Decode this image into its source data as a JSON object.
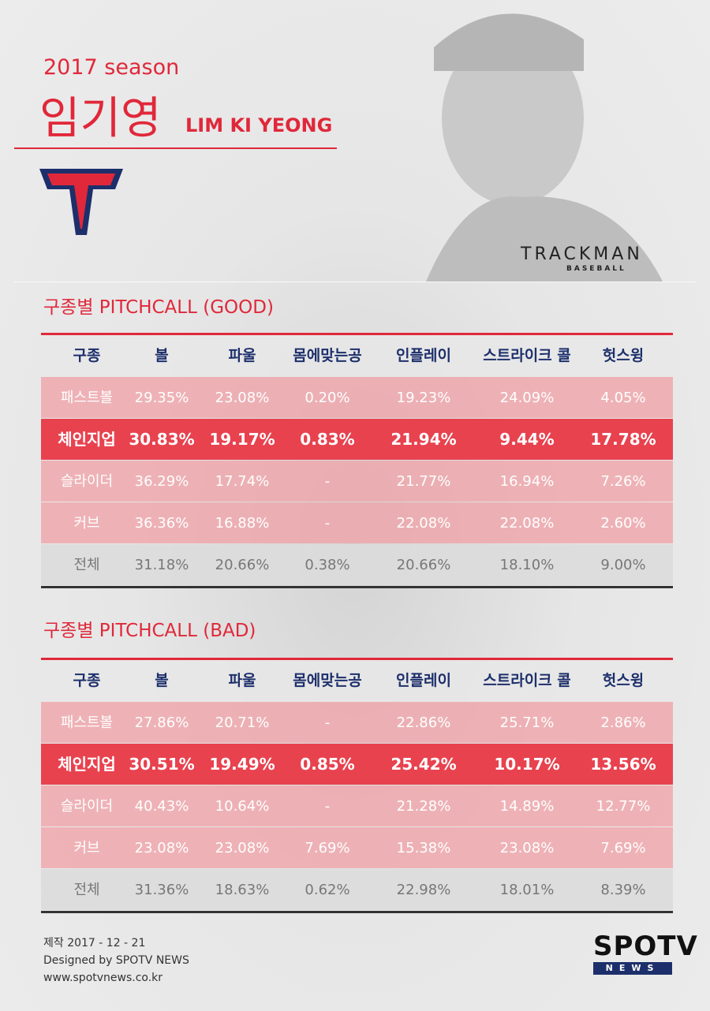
{
  "header": {
    "season": "2017 season",
    "name_ko": "임기영",
    "name_en": "LIM KI YEONG",
    "brand": "TRACKMAN",
    "brand_sub": "BASEBALL"
  },
  "tables": [
    {
      "title": "구종별 PITCHCALL (GOOD)",
      "columns": [
        "구종",
        "볼",
        "파울",
        "몸에맞는공",
        "인플레이",
        "스트라이크 콜",
        "헛스윙"
      ],
      "rows": [
        [
          "패스트볼",
          "29.35%",
          "23.08%",
          "0.20%",
          "19.23%",
          "24.09%",
          "4.05%"
        ],
        [
          "체인지업",
          "30.83%",
          "19.17%",
          "0.83%",
          "21.94%",
          "9.44%",
          "17.78%"
        ],
        [
          "슬라이더",
          "36.29%",
          "17.74%",
          "-",
          "21.77%",
          "16.94%",
          "7.26%"
        ],
        [
          "커브",
          "36.36%",
          "16.88%",
          "-",
          "22.08%",
          "22.08%",
          "2.60%"
        ],
        [
          "전체",
          "31.18%",
          "20.66%",
          "0.38%",
          "20.66%",
          "18.10%",
          "9.00%"
        ]
      ]
    },
    {
      "title": "구종별 PITCHCALL (BAD)",
      "columns": [
        "구종",
        "볼",
        "파울",
        "몸에맞는공",
        "인플레이",
        "스트라이크 콜",
        "헛스윙"
      ],
      "rows": [
        [
          "패스트볼",
          "27.86%",
          "20.71%",
          "-",
          "22.86%",
          "25.71%",
          "2.86%"
        ],
        [
          "체인지업",
          "30.51%",
          "19.49%",
          "0.85%",
          "25.42%",
          "10.17%",
          "13.56%"
        ],
        [
          "슬라이더",
          "40.43%",
          "10.64%",
          "-",
          "21.28%",
          "14.89%",
          "12.77%"
        ],
        [
          "커브",
          "23.08%",
          "23.08%",
          "7.69%",
          "15.38%",
          "23.08%",
          "7.69%"
        ],
        [
          "전체",
          "31.36%",
          "18.63%",
          "0.62%",
          "22.98%",
          "18.01%",
          "8.39%"
        ]
      ]
    }
  ],
  "footer": {
    "lines": [
      "제작 2017 - 12 - 21",
      "Designed by SPOTV NEWS",
      "www.spotvnews.co.kr"
    ],
    "logo": "SPOTV",
    "logo_sub": "NEWS"
  }
}
